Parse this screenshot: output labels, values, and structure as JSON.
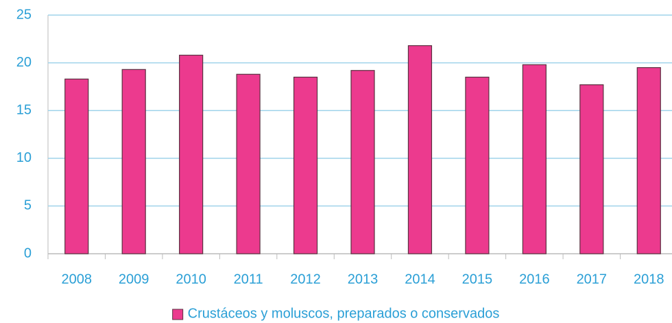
{
  "chart_data": {
    "type": "bar",
    "categories": [
      "2008",
      "2009",
      "2010",
      "2011",
      "2012",
      "2013",
      "2014",
      "2015",
      "2016",
      "2017",
      "2018"
    ],
    "series": [
      {
        "name": "Crustáceos y moluscos, preparados o conservados",
        "color": "#ec3a8e",
        "values": [
          18.3,
          19.3,
          20.8,
          18.8,
          18.5,
          19.2,
          21.8,
          18.5,
          19.8,
          17.7,
          19.5
        ]
      }
    ],
    "ylim": [
      0,
      25
    ],
    "yticks": [
      0,
      5,
      10,
      15,
      20,
      25
    ],
    "grid": true,
    "legend": "bottom"
  }
}
